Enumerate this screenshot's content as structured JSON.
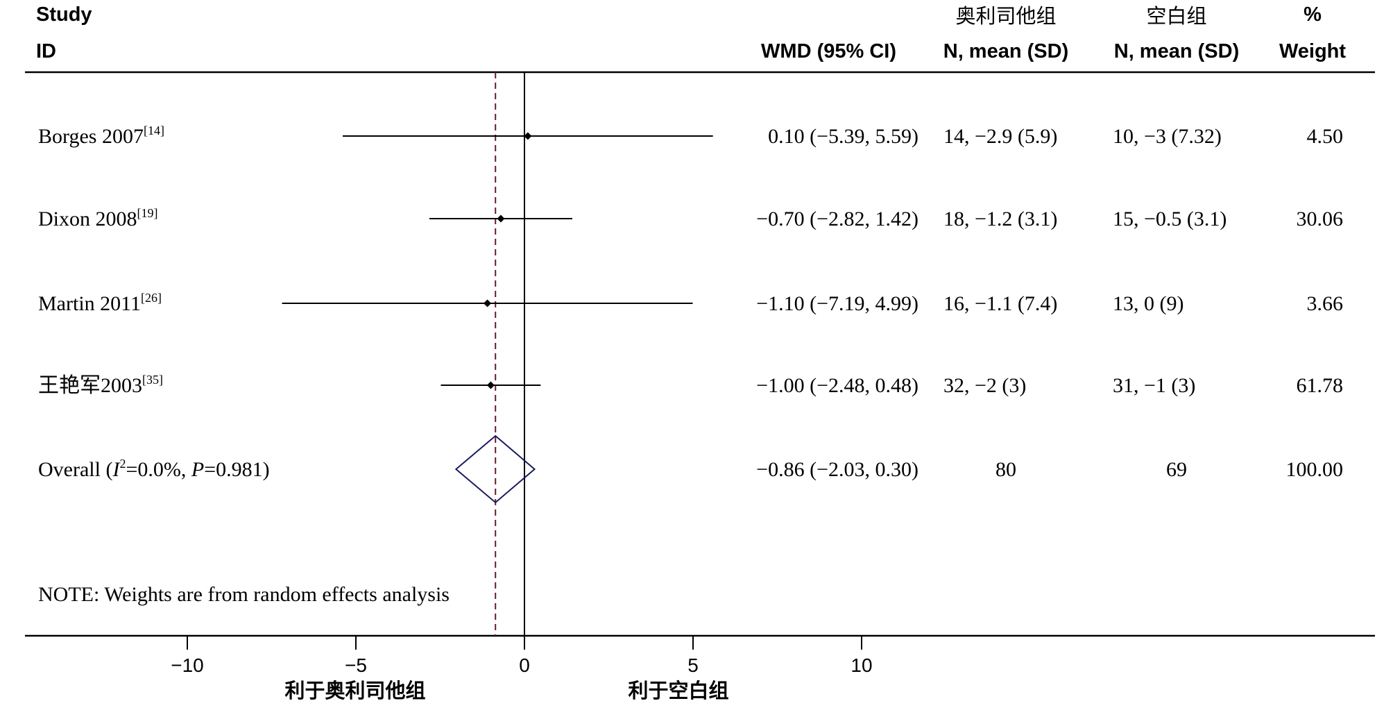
{
  "header": {
    "study_label": "Study",
    "id_label": "ID",
    "wmd_label": "WMD (95% CI)",
    "group1_name": "奥利司他组",
    "group1_sub": "N, mean (SD)",
    "group2_name": "空白组",
    "group2_sub": "N, mean (SD)",
    "weight_pct": "%",
    "weight_label": "Weight"
  },
  "note": "NOTE: Weights are from random effects analysis",
  "favors_left": "利于奥利司他组",
  "favors_right": "利于空白组",
  "colors": {
    "line": "#000000",
    "diamond": "#1a1a5e",
    "overall_line": "#6b1a2a"
  },
  "chart_data": {
    "type": "forest",
    "x_ticks": [
      -10,
      -5,
      0,
      5,
      10
    ],
    "x_tick_labels": [
      "−10",
      "−5",
      "0",
      "5",
      "10"
    ],
    "xlim": [
      -15,
      25
    ],
    "studies": [
      {
        "name": "Borges 2007",
        "ref": "[14]",
        "wmd": 0.1,
        "lower": -5.39,
        "upper": 5.59,
        "ci_text": "0.10 (−5.39, 5.59)",
        "g1_text": "14, −2.9 (5.9)",
        "g2_text": "10, −3 (7.32)",
        "weight_text": "4.50"
      },
      {
        "name": "Dixon 2008",
        "ref": "[19]",
        "wmd": -0.7,
        "lower": -2.82,
        "upper": 1.42,
        "ci_text": "−0.70 (−2.82, 1.42)",
        "g1_text": "18, −1.2 (3.1)",
        "g2_text": "15, −0.5 (3.1)",
        "weight_text": "30.06"
      },
      {
        "name": "Martin 2011",
        "ref": "[26]",
        "wmd": -1.1,
        "lower": -7.19,
        "upper": 4.99,
        "ci_text": "−1.10 (−7.19, 4.99)",
        "g1_text": "16, −1.1 (7.4)",
        "g2_text": "13, 0 (9)",
        "weight_text": "3.66"
      },
      {
        "name": "王艳军2003",
        "ref": "[35]",
        "wmd": -1.0,
        "lower": -2.48,
        "upper": 0.48,
        "ci_text": "−1.00 (−2.48, 0.48)",
        "g1_text": "32, −2 (3)",
        "g2_text": "31, −1 (3)",
        "weight_text": "61.78"
      }
    ],
    "overall": {
      "label_prefix": "Overall  (",
      "i_letter": "I",
      "i_sup": "2",
      "i_value": "=0.0%, ",
      "p_letter": "P",
      "p_value": "=0.981)",
      "wmd": -0.86,
      "lower": -2.03,
      "upper": 0.3,
      "ci_text": "−0.86 (−2.03, 0.30)",
      "g1_text": "80",
      "g2_text": "69",
      "weight_text": "100.00"
    }
  }
}
